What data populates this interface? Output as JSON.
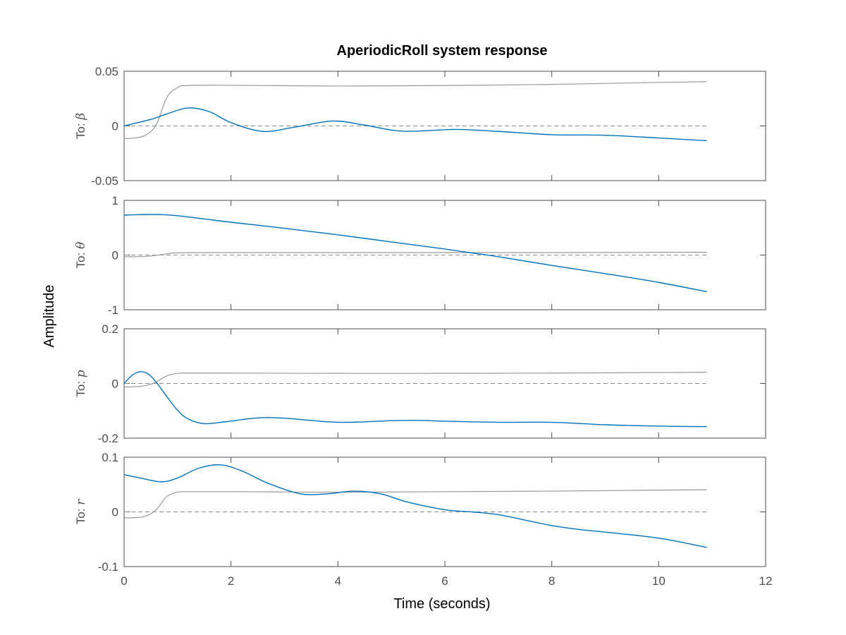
{
  "chart_data": {
    "type": "line",
    "title": "AperiodicRoll system response",
    "xlabel": "Time (seconds)",
    "ylabel": "Amplitude",
    "xlim": [
      0,
      12
    ],
    "xticks": [
      "0",
      "2",
      "4",
      "6",
      "8",
      "10",
      "12"
    ],
    "grid": false,
    "colors": {
      "response": "#0072BD",
      "reference": "#999999",
      "zero_line": "#8c8c8c",
      "axes": "#4d4d4d"
    },
    "panels": [
      {
        "label_prefix": "To: ",
        "label_symbol": "β",
        "ylim": [
          -0.05,
          0.05
        ],
        "yticks": [
          "-0.05",
          "0",
          "0.05"
        ],
        "series": [
          {
            "role": "reference",
            "x": [
              0,
              0.2,
              0.4,
              0.6,
              0.8,
              1.0,
              1.2,
              2,
              4,
              6,
              8,
              10,
              10.9
            ],
            "y": [
              -0.0115,
              -0.011,
              -0.0085,
              0.001,
              0.026,
              0.035,
              0.037,
              0.0372,
              0.0365,
              0.037,
              0.038,
              0.0398,
              0.0405
            ]
          },
          {
            "role": "response",
            "x": [
              0,
              0.5,
              0.8,
              1.2,
              1.6,
              2.0,
              2.6,
              3.2,
              3.9,
              4.5,
              5.2,
              6.2,
              7.0,
              8.0,
              9.0,
              10.0,
              10.9
            ],
            "y": [
              0,
              0.006,
              0.011,
              0.0165,
              0.013,
              0.003,
              -0.005,
              -0.001,
              0.0045,
              0.0008,
              -0.0048,
              -0.0032,
              -0.005,
              -0.008,
              -0.0085,
              -0.011,
              -0.0135
            ]
          }
        ]
      },
      {
        "label_prefix": "To: ",
        "label_symbol": "θ",
        "ylim": [
          -1,
          1
        ],
        "yticks": [
          "-1",
          "0",
          "1"
        ],
        "series": [
          {
            "role": "reference",
            "x": [
              0,
              0.4,
              0.8,
              1.0,
              2,
              4,
              6,
              8,
              10,
              10.9
            ],
            "y": [
              -0.03,
              -0.025,
              0.02,
              0.04,
              0.045,
              0.045,
              0.045,
              0.045,
              0.05,
              0.05
            ]
          },
          {
            "role": "response",
            "x": [
              0,
              0.3,
              0.7,
              1.0,
              1.5,
              2,
              3,
              4,
              5,
              6,
              6.5,
              7,
              8,
              9,
              10,
              10.9
            ],
            "y": [
              0.73,
              0.74,
              0.74,
              0.72,
              0.66,
              0.6,
              0.49,
              0.37,
              0.24,
              0.11,
              0.04,
              -0.03,
              -0.19,
              -0.34,
              -0.5,
              -0.67
            ]
          }
        ]
      },
      {
        "label_prefix": "To: ",
        "label_symbol": "p",
        "ylim": [
          -0.2,
          0.2
        ],
        "yticks": [
          "-0.2",
          "0",
          "0.2"
        ],
        "series": [
          {
            "role": "reference",
            "x": [
              0,
              0.2,
              0.4,
              0.6,
              0.8,
              1.0,
              1.2,
              2,
              4,
              6,
              8,
              10,
              10.9
            ],
            "y": [
              -0.013,
              -0.012,
              -0.008,
              0.005,
              0.028,
              0.037,
              0.038,
              0.038,
              0.037,
              0.037,
              0.038,
              0.04,
              0.041
            ]
          },
          {
            "role": "response",
            "x": [
              0,
              0.15,
              0.3,
              0.45,
              0.6,
              0.8,
              1.0,
              1.2,
              1.5,
              1.9,
              2.5,
              3.0,
              4.0,
              5.0,
              5.5,
              6.0,
              7.0,
              8.0,
              9.0,
              10.0,
              10.9
            ],
            "y": [
              0,
              0.03,
              0.043,
              0.035,
              0.005,
              -0.048,
              -0.098,
              -0.13,
              -0.147,
              -0.14,
              -0.126,
              -0.127,
              -0.142,
              -0.136,
              -0.135,
              -0.138,
              -0.142,
              -0.142,
              -0.151,
              -0.156,
              -0.158
            ]
          }
        ]
      },
      {
        "label_prefix": "To: ",
        "label_symbol": "r",
        "ylim": [
          -0.1,
          0.1
        ],
        "yticks": [
          "-0.1",
          "0",
          "0.1"
        ],
        "series": [
          {
            "role": "reference",
            "x": [
              0,
              0.2,
              0.4,
              0.6,
              0.8,
              1.0,
              1.2,
              2,
              4,
              6,
              8,
              10,
              10.9
            ],
            "y": [
              -0.011,
              -0.0105,
              -0.008,
              0.004,
              0.028,
              0.036,
              0.037,
              0.037,
              0.036,
              0.037,
              0.038,
              0.0398,
              0.0405
            ]
          },
          {
            "role": "response",
            "x": [
              0,
              0.3,
              0.7,
              1.0,
              1.4,
              1.8,
              2.2,
              2.7,
              3.3,
              3.8,
              4.3,
              4.8,
              5.3,
              6.0,
              6.5,
              7.0,
              7.5,
              8.0,
              8.5,
              9.0,
              10.0,
              10.9
            ],
            "y": [
              0.068,
              0.062,
              0.055,
              0.062,
              0.08,
              0.086,
              0.075,
              0.052,
              0.033,
              0.033,
              0.038,
              0.033,
              0.018,
              0.004,
              0.0,
              -0.005,
              -0.015,
              -0.025,
              -0.032,
              -0.037,
              -0.048,
              -0.065
            ]
          }
        ]
      }
    ]
  }
}
